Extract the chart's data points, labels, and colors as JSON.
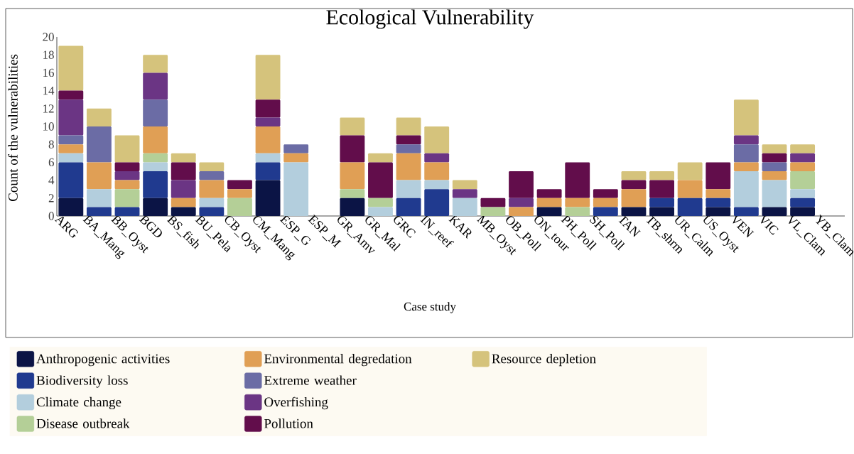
{
  "chart_data": {
    "type": "bar",
    "stacked": true,
    "title": "Ecological Vulnerability",
    "xlabel": "Case study",
    "ylabel": "Count of the vulnerabilities",
    "categories": [
      "ARG",
      "BA_Mang",
      "BB_Oyst",
      "BGD",
      "BS_fish",
      "BU_Pela",
      "CB_Oyst",
      "CM_Mang",
      "ESP_G",
      "ESP_M",
      "GR_Amv",
      "GR_Mal",
      "GRC",
      "IN_reef",
      "KAR",
      "MB_Oyst",
      "OB_Poll",
      "ON_tour",
      "PH_Poll",
      "SH_Poll",
      "TAN",
      "TB_shrm",
      "UR_Calm",
      "US_Oyst",
      "VEN",
      "VIC",
      "VL_Clam",
      "YB_Clam"
    ],
    "ylim": [
      0,
      20
    ],
    "yticks": [
      0,
      2,
      4,
      6,
      8,
      10,
      12,
      14,
      16,
      18,
      20
    ],
    "legend": "bottom",
    "series": [
      {
        "name": "Anthropogenic activities",
        "color": "#0b1445",
        "values": [
          2,
          0,
          0,
          2,
          1,
          0,
          0,
          4,
          0,
          0,
          2,
          0,
          0,
          0,
          0,
          0,
          0,
          1,
          0,
          0,
          1,
          1,
          0,
          1,
          0,
          1,
          1,
          0
        ]
      },
      {
        "name": "Biodiversity loss",
        "color": "#203a8f",
        "values": [
          4,
          1,
          1,
          3,
          0,
          1,
          0,
          2,
          0,
          0,
          0,
          0,
          2,
          3,
          0,
          0,
          0,
          0,
          0,
          1,
          0,
          1,
          2,
          1,
          1,
          0,
          1,
          0
        ]
      },
      {
        "name": "Climate change",
        "color": "#b3cedd",
        "values": [
          1,
          2,
          0,
          1,
          0,
          1,
          0,
          1,
          6,
          0,
          0,
          1,
          2,
          1,
          2,
          0,
          0,
          0,
          0,
          0,
          0,
          0,
          0,
          0,
          4,
          3,
          1,
          0
        ]
      },
      {
        "name": "Disease outbreak",
        "color": "#b4cf97",
        "values": [
          0,
          0,
          2,
          1,
          0,
          0,
          2,
          0,
          0,
          0,
          1,
          1,
          0,
          0,
          0,
          1,
          0,
          0,
          1,
          0,
          0,
          0,
          0,
          0,
          0,
          0,
          2,
          0
        ]
      },
      {
        "name": "Environmental degredation",
        "color": "#e09f55",
        "values": [
          1,
          3,
          1,
          3,
          1,
          2,
          1,
          3,
          1,
          0,
          3,
          0,
          3,
          2,
          0,
          0,
          1,
          1,
          1,
          1,
          2,
          0,
          2,
          1,
          1,
          1,
          1,
          0
        ]
      },
      {
        "name": "Extreme weather",
        "color": "#6b6ca5",
        "values": [
          1,
          4,
          0,
          3,
          0,
          1,
          0,
          0,
          1,
          0,
          0,
          0,
          1,
          0,
          0,
          0,
          0,
          0,
          0,
          0,
          0,
          0,
          0,
          0,
          2,
          1,
          0,
          0
        ]
      },
      {
        "name": "Overfishing",
        "color": "#6b3584",
        "values": [
          4,
          0,
          1,
          3,
          2,
          0,
          0,
          1,
          0,
          0,
          0,
          0,
          0,
          1,
          1,
          0,
          1,
          0,
          0,
          0,
          0,
          0,
          0,
          0,
          1,
          0,
          1,
          0
        ]
      },
      {
        "name": "Pollution",
        "color": "#620d4b",
        "values": [
          1,
          0,
          1,
          0,
          2,
          0,
          1,
          2,
          0,
          0,
          3,
          4,
          1,
          0,
          0,
          1,
          3,
          1,
          4,
          1,
          1,
          2,
          0,
          3,
          0,
          1,
          0,
          0
        ]
      },
      {
        "name": "Resource depletion",
        "color": "#d5c37c",
        "values": [
          5,
          2,
          3,
          2,
          1,
          1,
          0,
          5,
          0,
          0,
          2,
          1,
          2,
          3,
          1,
          0,
          0,
          0,
          0,
          0,
          1,
          1,
          2,
          0,
          4,
          1,
          1,
          0
        ]
      }
    ]
  }
}
